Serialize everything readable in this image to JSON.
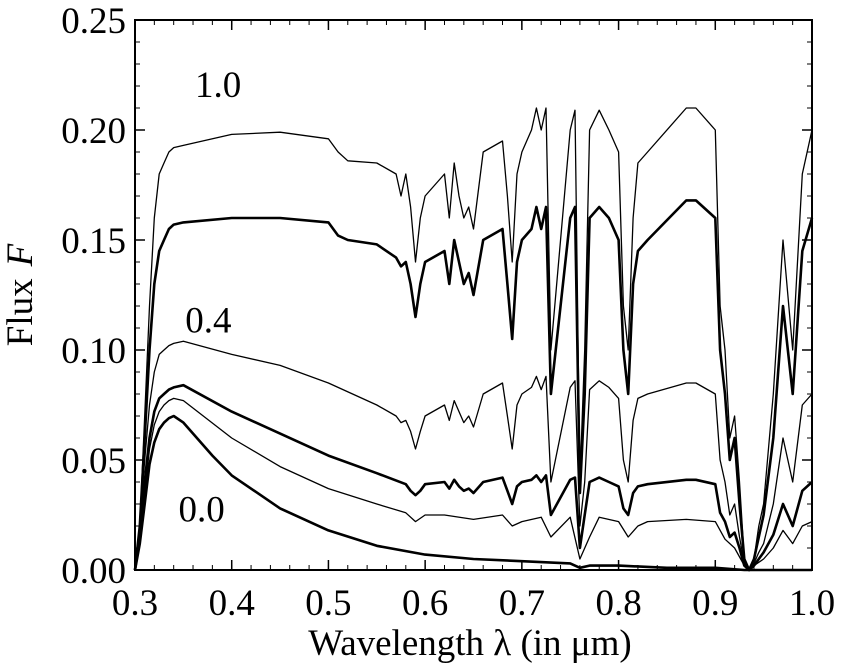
{
  "chart_data": {
    "type": "line",
    "title": "",
    "xlabel": "Wavelength λ (in μm)",
    "ylabel": "Flux",
    "ylabel_symbol": "F",
    "xlim": [
      0.3,
      1.0
    ],
    "ylim": [
      0.0,
      0.25
    ],
    "xticks": [
      0.3,
      0.4,
      0.5,
      0.6,
      0.7,
      0.8,
      0.9,
      1.0
    ],
    "xtick_labels": [
      "0.3",
      "0.4",
      "0.5",
      "0.6",
      "0.7",
      "0.8",
      "0.9",
      "1.0"
    ],
    "yticks": [
      0.0,
      0.05,
      0.1,
      0.15,
      0.2,
      0.25
    ],
    "ytick_labels": [
      "0.00",
      "0.05",
      "0.10",
      "0.15",
      "0.20",
      "0.25"
    ],
    "grid": false,
    "legend": "none",
    "annotations": [
      {
        "text": "1.0",
        "x": 0.362,
        "y": 0.215
      },
      {
        "text": "0.4",
        "x": 0.352,
        "y": 0.108
      },
      {
        "text": "0.0",
        "x": 0.345,
        "y": 0.022
      }
    ],
    "series": [
      {
        "line_weight": "thin",
        "x": [
          0.3,
          0.305,
          0.31,
          0.315,
          0.32,
          0.325,
          0.33,
          0.335,
          0.34,
          0.35,
          0.4,
          0.45,
          0.5,
          0.51,
          0.52,
          0.55,
          0.57,
          0.575,
          0.58,
          0.585,
          0.59,
          0.595,
          0.6,
          0.62,
          0.625,
          0.63,
          0.635,
          0.64,
          0.645,
          0.65,
          0.66,
          0.68,
          0.685,
          0.69,
          0.695,
          0.7,
          0.71,
          0.715,
          0.72,
          0.725,
          0.73,
          0.75,
          0.755,
          0.76,
          0.765,
          0.77,
          0.78,
          0.79,
          0.8,
          0.805,
          0.81,
          0.815,
          0.82,
          0.83,
          0.87,
          0.88,
          0.9,
          0.905,
          0.91,
          0.915,
          0.92,
          0.925,
          0.93,
          0.935,
          0.94,
          0.945,
          0.95,
          0.96,
          0.97,
          0.98,
          0.99,
          1.0
        ],
        "y": [
          0.0,
          0.02,
          0.07,
          0.12,
          0.16,
          0.18,
          0.185,
          0.19,
          0.192,
          0.193,
          0.198,
          0.199,
          0.196,
          0.19,
          0.186,
          0.185,
          0.18,
          0.17,
          0.18,
          0.165,
          0.14,
          0.16,
          0.17,
          0.18,
          0.16,
          0.185,
          0.17,
          0.16,
          0.165,
          0.155,
          0.19,
          0.195,
          0.17,
          0.14,
          0.18,
          0.19,
          0.2,
          0.21,
          0.2,
          0.21,
          0.1,
          0.2,
          0.209,
          0.04,
          0.1,
          0.2,
          0.209,
          0.2,
          0.19,
          0.12,
          0.1,
          0.16,
          0.185,
          0.19,
          0.21,
          0.21,
          0.2,
          0.12,
          0.1,
          0.06,
          0.07,
          0.04,
          0.005,
          0.0,
          0.005,
          0.02,
          0.03,
          0.08,
          0.15,
          0.1,
          0.18,
          0.2
        ]
      },
      {
        "line_weight": "thick",
        "x": [
          0.3,
          0.305,
          0.31,
          0.315,
          0.32,
          0.325,
          0.33,
          0.335,
          0.34,
          0.35,
          0.4,
          0.45,
          0.5,
          0.51,
          0.52,
          0.55,
          0.57,
          0.575,
          0.58,
          0.585,
          0.59,
          0.595,
          0.6,
          0.62,
          0.625,
          0.63,
          0.635,
          0.64,
          0.645,
          0.65,
          0.66,
          0.68,
          0.685,
          0.69,
          0.695,
          0.7,
          0.71,
          0.715,
          0.72,
          0.725,
          0.73,
          0.75,
          0.755,
          0.76,
          0.765,
          0.77,
          0.78,
          0.79,
          0.8,
          0.805,
          0.81,
          0.815,
          0.82,
          0.83,
          0.87,
          0.88,
          0.9,
          0.905,
          0.91,
          0.915,
          0.92,
          0.925,
          0.93,
          0.935,
          0.94,
          0.945,
          0.95,
          0.96,
          0.97,
          0.98,
          0.99,
          1.0
        ],
        "y": [
          0.0,
          0.02,
          0.06,
          0.1,
          0.13,
          0.145,
          0.15,
          0.155,
          0.157,
          0.158,
          0.16,
          0.16,
          0.158,
          0.152,
          0.15,
          0.148,
          0.142,
          0.138,
          0.14,
          0.13,
          0.115,
          0.13,
          0.14,
          0.145,
          0.13,
          0.15,
          0.14,
          0.13,
          0.135,
          0.125,
          0.15,
          0.155,
          0.13,
          0.105,
          0.14,
          0.15,
          0.155,
          0.165,
          0.155,
          0.165,
          0.08,
          0.16,
          0.165,
          0.035,
          0.08,
          0.16,
          0.165,
          0.16,
          0.15,
          0.1,
          0.08,
          0.13,
          0.145,
          0.15,
          0.168,
          0.168,
          0.16,
          0.1,
          0.08,
          0.05,
          0.06,
          0.03,
          0.005,
          0.0,
          0.005,
          0.015,
          0.025,
          0.06,
          0.12,
          0.08,
          0.145,
          0.16
        ]
      },
      {
        "line_weight": "thin",
        "x": [
          0.3,
          0.305,
          0.31,
          0.315,
          0.32,
          0.325,
          0.33,
          0.335,
          0.34,
          0.35,
          0.4,
          0.45,
          0.5,
          0.55,
          0.57,
          0.575,
          0.58,
          0.585,
          0.59,
          0.595,
          0.6,
          0.62,
          0.625,
          0.63,
          0.635,
          0.64,
          0.645,
          0.65,
          0.66,
          0.68,
          0.685,
          0.69,
          0.695,
          0.7,
          0.71,
          0.715,
          0.72,
          0.725,
          0.73,
          0.75,
          0.755,
          0.76,
          0.765,
          0.77,
          0.78,
          0.79,
          0.8,
          0.805,
          0.81,
          0.815,
          0.82,
          0.83,
          0.87,
          0.88,
          0.9,
          0.905,
          0.91,
          0.915,
          0.92,
          0.925,
          0.93,
          0.935,
          0.94,
          0.945,
          0.95,
          0.96,
          0.97,
          0.98,
          0.99,
          1.0
        ],
        "y": [
          0.0,
          0.02,
          0.05,
          0.075,
          0.09,
          0.098,
          0.1,
          0.102,
          0.103,
          0.104,
          0.098,
          0.093,
          0.085,
          0.075,
          0.07,
          0.067,
          0.068,
          0.063,
          0.055,
          0.063,
          0.07,
          0.075,
          0.068,
          0.077,
          0.072,
          0.067,
          0.07,
          0.065,
          0.08,
          0.085,
          0.07,
          0.055,
          0.075,
          0.08,
          0.083,
          0.088,
          0.082,
          0.088,
          0.04,
          0.083,
          0.086,
          0.02,
          0.04,
          0.082,
          0.086,
          0.083,
          0.078,
          0.05,
          0.04,
          0.068,
          0.078,
          0.08,
          0.085,
          0.085,
          0.08,
          0.05,
          0.04,
          0.025,
          0.03,
          0.015,
          0.003,
          0.0,
          0.003,
          0.008,
          0.012,
          0.03,
          0.06,
          0.04,
          0.075,
          0.08
        ]
      },
      {
        "line_weight": "thick",
        "x": [
          0.3,
          0.305,
          0.31,
          0.315,
          0.32,
          0.325,
          0.33,
          0.335,
          0.34,
          0.35,
          0.4,
          0.45,
          0.5,
          0.55,
          0.58,
          0.585,
          0.59,
          0.595,
          0.6,
          0.62,
          0.625,
          0.63,
          0.635,
          0.64,
          0.645,
          0.65,
          0.66,
          0.68,
          0.685,
          0.69,
          0.695,
          0.7,
          0.71,
          0.715,
          0.72,
          0.725,
          0.73,
          0.75,
          0.755,
          0.76,
          0.765,
          0.77,
          0.78,
          0.79,
          0.8,
          0.805,
          0.81,
          0.815,
          0.82,
          0.83,
          0.87,
          0.88,
          0.9,
          0.905,
          0.91,
          0.915,
          0.92,
          0.925,
          0.93,
          0.935,
          0.94,
          0.945,
          0.95,
          0.96,
          0.97,
          0.98,
          0.99,
          1.0
        ],
        "y": [
          0.0,
          0.015,
          0.04,
          0.06,
          0.072,
          0.078,
          0.08,
          0.082,
          0.083,
          0.084,
          0.072,
          0.062,
          0.052,
          0.044,
          0.039,
          0.036,
          0.034,
          0.036,
          0.039,
          0.04,
          0.037,
          0.041,
          0.038,
          0.036,
          0.037,
          0.035,
          0.04,
          0.042,
          0.036,
          0.03,
          0.038,
          0.04,
          0.041,
          0.043,
          0.04,
          0.043,
          0.025,
          0.041,
          0.042,
          0.01,
          0.025,
          0.04,
          0.042,
          0.04,
          0.038,
          0.028,
          0.025,
          0.035,
          0.038,
          0.039,
          0.041,
          0.041,
          0.039,
          0.026,
          0.022,
          0.015,
          0.017,
          0.01,
          0.002,
          0.0,
          0.002,
          0.005,
          0.008,
          0.016,
          0.03,
          0.02,
          0.036,
          0.04
        ]
      },
      {
        "line_weight": "thin",
        "x": [
          0.3,
          0.305,
          0.31,
          0.315,
          0.32,
          0.325,
          0.33,
          0.335,
          0.34,
          0.35,
          0.4,
          0.45,
          0.5,
          0.55,
          0.58,
          0.59,
          0.6,
          0.62,
          0.65,
          0.68,
          0.69,
          0.7,
          0.72,
          0.73,
          0.75,
          0.76,
          0.77,
          0.78,
          0.8,
          0.81,
          0.82,
          0.83,
          0.87,
          0.9,
          0.91,
          0.92,
          0.93,
          0.935,
          0.94,
          0.95,
          0.96,
          0.97,
          0.98,
          0.99,
          1.0
        ],
        "y": [
          0.0,
          0.015,
          0.035,
          0.055,
          0.066,
          0.072,
          0.075,
          0.077,
          0.078,
          0.077,
          0.06,
          0.047,
          0.037,
          0.03,
          0.026,
          0.022,
          0.025,
          0.025,
          0.023,
          0.025,
          0.02,
          0.022,
          0.024,
          0.015,
          0.024,
          0.005,
          0.015,
          0.024,
          0.022,
          0.015,
          0.02,
          0.022,
          0.023,
          0.022,
          0.014,
          0.01,
          0.002,
          0.0,
          0.002,
          0.005,
          0.01,
          0.018,
          0.012,
          0.02,
          0.022
        ]
      },
      {
        "line_weight": "thick",
        "x": [
          0.3,
          0.305,
          0.31,
          0.315,
          0.32,
          0.325,
          0.33,
          0.335,
          0.34,
          0.35,
          0.38,
          0.4,
          0.45,
          0.5,
          0.55,
          0.6,
          0.65,
          0.7,
          0.75,
          0.76,
          0.77,
          0.8,
          0.85,
          0.9,
          0.93,
          0.95,
          1.0
        ],
        "y": [
          0.0,
          0.012,
          0.03,
          0.048,
          0.058,
          0.064,
          0.067,
          0.069,
          0.07,
          0.067,
          0.052,
          0.043,
          0.028,
          0.018,
          0.011,
          0.007,
          0.005,
          0.004,
          0.003,
          0.001,
          0.002,
          0.002,
          0.001,
          0.001,
          0.0,
          0.0,
          0.0
        ]
      }
    ]
  }
}
